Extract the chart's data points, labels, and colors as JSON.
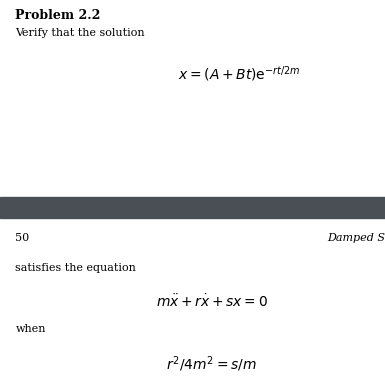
{
  "title": "Problem 2.2",
  "subtitle": "Verify that the solution",
  "equation1": "$x = (A + Bt)\\mathrm{e}^{-rt/2m}$",
  "page_number": "50",
  "chapter_title": "Damped S",
  "satisfies_text": "satisfies the equation",
  "equation2": "$m\\ddot{x} + r\\dot{x} + sx = 0$",
  "when_text": "when",
  "equation3": "$r^2/4m^2 = s/m$",
  "divider_color": "#4a4f55",
  "bg_color": "#ffffff",
  "text_color": "#000000",
  "title_fontsize": 9,
  "subtitle_fontsize": 8,
  "eq_fontsize": 10,
  "body_fontsize": 8
}
